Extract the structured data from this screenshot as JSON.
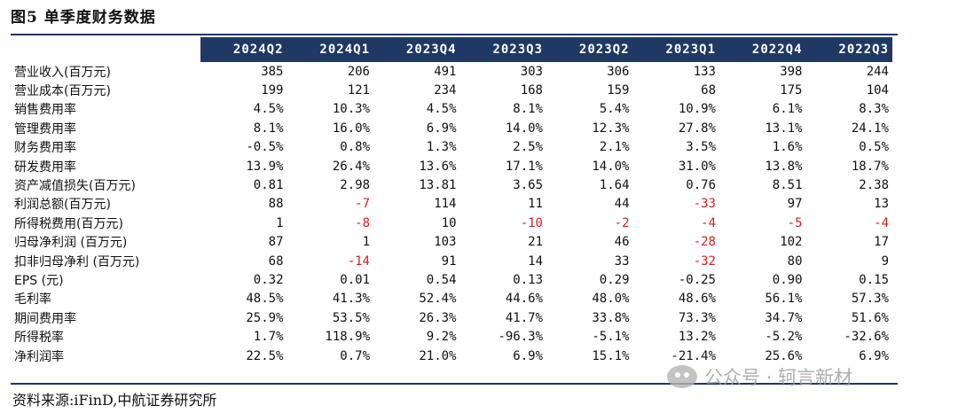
{
  "title": "图5  单季度财务数据",
  "columns": [
    "2024Q2",
    "2024Q1",
    "2023Q4",
    "2023Q3",
    "2023Q2",
    "2023Q1",
    "2022Q4",
    "2022Q3"
  ],
  "rows": [
    {
      "label": "营业收入(百万元)",
      "values": [
        "385",
        "206",
        "491",
        "303",
        "306",
        "133",
        "398",
        "244"
      ]
    },
    {
      "label": "营业成本(百万元)",
      "values": [
        "199",
        "121",
        "234",
        "168",
        "159",
        "68",
        "175",
        "104"
      ]
    },
    {
      "label": "销售费用率",
      "values": [
        "4.5%",
        "10.3%",
        "4.5%",
        "8.1%",
        "5.4%",
        "10.9%",
        "6.1%",
        "8.3%"
      ]
    },
    {
      "label": "管理费用率",
      "values": [
        "8.1%",
        "16.0%",
        "6.9%",
        "14.0%",
        "12.3%",
        "27.8%",
        "13.1%",
        "24.1%"
      ]
    },
    {
      "label": "财务费用率",
      "values": [
        "-0.5%",
        "0.8%",
        "1.3%",
        "2.5%",
        "2.1%",
        "3.5%",
        "1.6%",
        "0.5%"
      ]
    },
    {
      "label": "研发费用率",
      "values": [
        "13.9%",
        "26.4%",
        "13.6%",
        "17.1%",
        "14.0%",
        "31.0%",
        "13.8%",
        "18.7%"
      ]
    },
    {
      "label": "资产减值损失(百万元)",
      "values": [
        "0.81",
        "2.98",
        "13.81",
        "3.65",
        "1.64",
        "0.76",
        "8.51",
        "2.38"
      ]
    },
    {
      "label": "利润总额(百万元)",
      "values": [
        "88",
        "-7",
        "114",
        "11",
        "44",
        "-33",
        "97",
        "13"
      ]
    },
    {
      "label": "所得税费用(百万元)",
      "values": [
        "1",
        "-8",
        "10",
        "-10",
        "-2",
        "-4",
        "-5",
        "-4"
      ]
    },
    {
      "label": "归母净利润 (百万元)",
      "values": [
        "87",
        "1",
        "103",
        "21",
        "46",
        "-28",
        "102",
        "17"
      ]
    },
    {
      "label": "扣非归母净利 (百万元)",
      "values": [
        "68",
        "-14",
        "91",
        "14",
        "33",
        "-32",
        "80",
        "9"
      ]
    },
    {
      "label": "EPS (元)",
      "values": [
        "0.32",
        "0.01",
        "0.54",
        "0.13",
        "0.29",
        "-0.25",
        "0.90",
        "0.15"
      ]
    },
    {
      "label": "毛利率",
      "values": [
        "48.5%",
        "41.3%",
        "52.4%",
        "44.6%",
        "48.0%",
        "48.6%",
        "56.1%",
        "57.3%"
      ]
    },
    {
      "label": "期间费用率",
      "values": [
        "25.9%",
        "53.5%",
        "26.3%",
        "41.7%",
        "33.8%",
        "73.3%",
        "34.7%",
        "51.6%"
      ]
    },
    {
      "label": "所得税率",
      "values": [
        "1.7%",
        "118.9%",
        "9.2%",
        "-96.3%",
        "-5.1%",
        "13.2%",
        "-5.2%",
        "-32.6%"
      ]
    },
    {
      "label": "净利润率",
      "values": [
        "22.5%",
        "0.7%",
        "21.0%",
        "6.9%",
        "15.1%",
        "-21.4%",
        "25.6%",
        "6.9%"
      ]
    }
  ],
  "negative_color": "#d21f1f",
  "header_color": "#1f3864",
  "source": "资料来源:iFinD,中航证券研究所",
  "watermark": {
    "text": "公众号 · 轲言新材",
    "icon": "wechat-icon"
  }
}
